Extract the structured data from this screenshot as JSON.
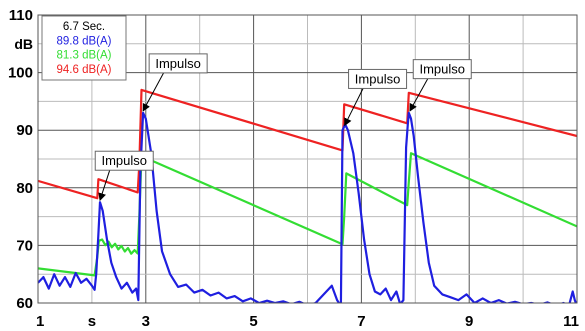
{
  "chart_data": {
    "type": "line",
    "title": "",
    "xlabel": "",
    "ylabel": "",
    "x_unit": "s",
    "y_unit": "dB",
    "xlim": [
      1,
      11
    ],
    "ylim": [
      60,
      110
    ],
    "x_ticks": [
      "1",
      "3",
      "5",
      "7",
      "9",
      "11"
    ],
    "y_ticks": [
      "60",
      "70",
      "80",
      "90",
      "100",
      "110"
    ],
    "grid": true,
    "legend": {
      "placement": "top-left",
      "entries": [
        {
          "text": "6.7 Sec.",
          "color": "#000000"
        },
        {
          "text": "89.8 dB(A)",
          "color": "#1f1fe0"
        },
        {
          "text": "81.3 dB(A)",
          "color": "#33dd33"
        },
        {
          "text": "94.6 dB(A)",
          "color": "#ee2222"
        }
      ]
    },
    "series": [
      {
        "color": "#ee2222",
        "x": [
          1.0,
          2.1,
          2.12,
          2.85,
          2.88,
          2.92,
          6.65,
          6.68,
          7.85,
          7.88,
          11.0
        ],
        "y": [
          81.2,
          78.2,
          81.5,
          79.2,
          84.0,
          97.0,
          86.5,
          94.5,
          91.2,
          96.5,
          89.0
        ]
      },
      {
        "color": "#33dd33",
        "x": [
          1.0,
          2.05,
          2.1,
          2.13,
          2.85,
          2.88,
          2.92,
          6.65,
          6.68,
          6.72,
          7.85,
          7.88,
          7.92,
          11.0
        ],
        "y": [
          66.0,
          64.8,
          68.0,
          70.8,
          68.6,
          75.0,
          85.5,
          70.2,
          75.0,
          82.5,
          77.0,
          81.0,
          86.0,
          73.3
        ],
        "wiggle": [
          [
            1.0,
            2.0,
            0.5
          ],
          [
            2.13,
            2.85,
            0.4
          ]
        ]
      },
      {
        "color": "#1f1fe0",
        "x": [
          1.0,
          1.1,
          1.2,
          1.3,
          1.4,
          1.5,
          1.6,
          1.7,
          1.8,
          1.9,
          2.0,
          2.05,
          2.08,
          2.12,
          2.15,
          2.2,
          2.28,
          2.36,
          2.45,
          2.55,
          2.65,
          2.75,
          2.82,
          2.86,
          2.9,
          2.95,
          3.0,
          3.1,
          3.2,
          3.3,
          3.45,
          3.6,
          3.75,
          3.9,
          4.05,
          4.2,
          4.35,
          4.5,
          4.65,
          4.8,
          4.95,
          5.1,
          5.25,
          5.4,
          5.55,
          5.7,
          5.85,
          6.0,
          6.15,
          6.3,
          6.45,
          6.55,
          6.62,
          6.65,
          6.7,
          6.75,
          6.85,
          6.95,
          7.05,
          7.15,
          7.25,
          7.35,
          7.45,
          7.55,
          7.65,
          7.72,
          7.78,
          7.83,
          7.86,
          7.88,
          7.92,
          7.97,
          8.05,
          8.15,
          8.25,
          8.35,
          8.5,
          8.65,
          8.8,
          8.95,
          9.1,
          9.25,
          9.4,
          9.55,
          9.7,
          9.85,
          10.0,
          10.15,
          10.3,
          10.45,
          10.6,
          10.75,
          10.85,
          10.92,
          10.96,
          11.0
        ],
        "y": [
          63.5,
          64.5,
          62.5,
          65.0,
          63.0,
          64.5,
          62.8,
          65.2,
          63.5,
          64.2,
          63.0,
          62.3,
          65.0,
          72.0,
          77.5,
          76.0,
          71.0,
          67.0,
          64.5,
          62.5,
          63.5,
          61.8,
          62.5,
          60.5,
          83.0,
          93.0,
          92.0,
          86.0,
          76.0,
          69.0,
          65.0,
          62.8,
          63.2,
          61.8,
          62.3,
          61.3,
          61.8,
          60.8,
          61.2,
          60.3,
          60.8,
          60.0,
          60.4,
          60.0,
          60.3,
          59.8,
          60.2,
          59.6,
          60.0,
          61.5,
          63.0,
          60.5,
          59.5,
          90.0,
          91.0,
          90.0,
          86.0,
          79.0,
          71.0,
          65.0,
          62.0,
          61.5,
          62.5,
          60.5,
          62.0,
          59.8,
          60.5,
          87.0,
          91.0,
          93.0,
          92.0,
          89.0,
          82.0,
          74.0,
          67.0,
          63.0,
          61.5,
          61.0,
          60.5,
          61.5,
          60.0,
          60.8,
          60.0,
          60.5,
          59.9,
          60.2,
          59.8,
          60.0,
          59.7,
          60.1,
          59.6,
          60.0,
          59.5,
          62.0,
          60.5,
          59.5
        ]
      }
    ],
    "annotations": [
      {
        "text": "Impulso",
        "label_x": 3.6,
        "label_y": 101.6,
        "point_x": 2.95,
        "point_y": 93.0
      },
      {
        "text": "Impulso",
        "label_x": 2.6,
        "label_y": 84.7,
        "point_x": 2.15,
        "point_y": 77.5
      },
      {
        "text": "Impulso",
        "label_x": 7.3,
        "label_y": 98.9,
        "point_x": 6.69,
        "point_y": 90.5
      },
      {
        "text": "Impulso",
        "label_x": 8.5,
        "label_y": 100.6,
        "point_x": 7.9,
        "point_y": 93.0
      }
    ]
  }
}
